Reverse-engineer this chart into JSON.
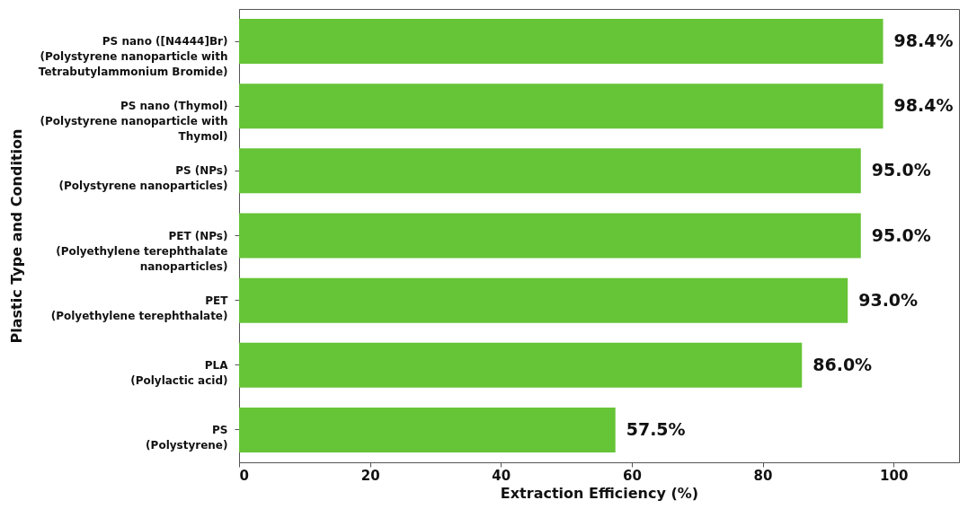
{
  "chart_data": {
    "type": "bar",
    "orientation": "horizontal",
    "xlabel": "Extraction Efficiency (%)",
    "ylabel": "Plastic Type and Condition",
    "categories": [
      "PS nano ([N4444]Br)\n(Polystyrene nanoparticle with\nTetrabutylammonium Bromide)",
      "PS nano (Thymol)\n(Polystyrene nanoparticle with\nThymol)",
      "PS (NPs)\n(Polystyrene nanoparticles)",
      "PET (NPs)\n(Polyethylene terephthalate\nnanoparticles)",
      "PET\n(Polyethylene terephthalate)",
      "PLA\n(Polylactic acid)",
      "PS\n(Polystyrene)"
    ],
    "values": [
      98.4,
      98.4,
      95.0,
      95.0,
      93.0,
      86.0,
      57.5
    ],
    "value_labels": [
      "98.4%",
      "98.4%",
      "95.0%",
      "95.0%",
      "93.0%",
      "86.0%",
      "57.5%"
    ],
    "color": "#66c437",
    "xlim": [
      0,
      110
    ],
    "xticks": [
      0,
      20,
      40,
      60,
      80,
      100
    ],
    "grid": false
  }
}
